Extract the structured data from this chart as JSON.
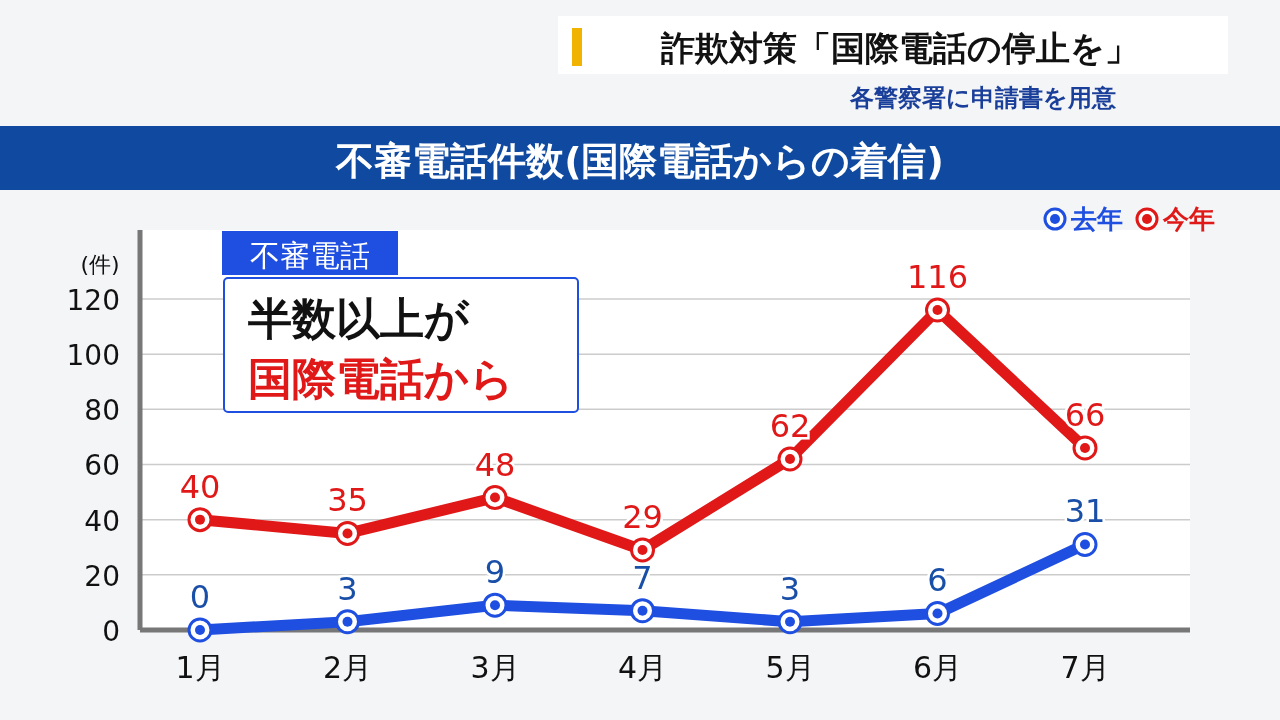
{
  "chart_data": {
    "type": "line",
    "title": "不審電話件数(国際電話からの着信)",
    "ylabel": "(件)",
    "annotations": [
      "詐欺対策「国際電話の停止を」",
      "各警察署に申請書を用意",
      "不審電話",
      "半数以上が",
      "国際電話から"
    ],
    "categories": [
      "1月",
      "2月",
      "3月",
      "4月",
      "5月",
      "6月",
      "7月"
    ],
    "series": [
      {
        "name": "去年",
        "color": "#1f4fe0",
        "values": [
          0,
          3,
          9,
          7,
          3,
          6,
          31
        ]
      },
      {
        "name": "今年",
        "color": "#e01818",
        "values": [
          40,
          35,
          48,
          29,
          62,
          116,
          66
        ]
      }
    ],
    "ylim": [
      0,
      145
    ],
    "yticks": [
      0,
      20,
      40,
      60,
      80,
      100,
      120
    ],
    "grid": "y",
    "data_labels": true,
    "marker": "circle",
    "legend": "top right"
  }
}
